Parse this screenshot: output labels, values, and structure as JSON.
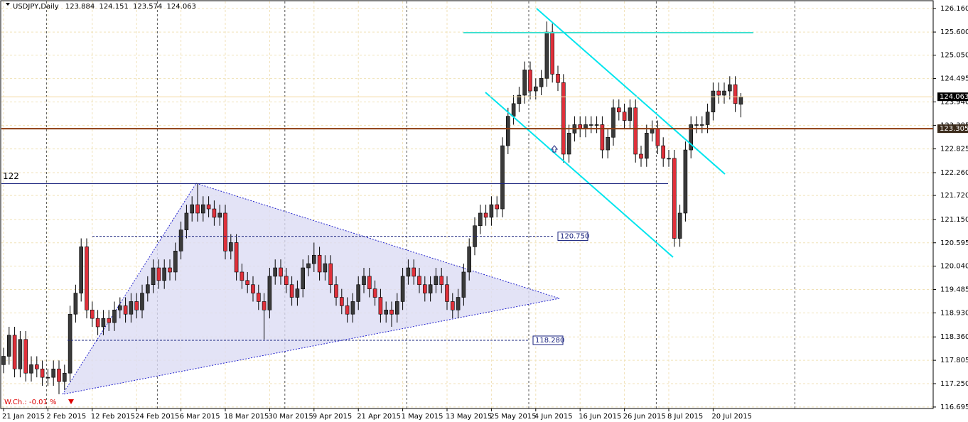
{
  "chart_data": {
    "type": "candlestick",
    "symbol": "USDJPY,Daily",
    "annotation": "W.Ch.: -0.01 %",
    "categories": [
      "21 Jan 2015",
      null,
      null,
      null,
      null,
      null,
      null,
      null,
      "2 Feb 2015",
      null,
      null,
      null,
      null,
      null,
      null,
      null,
      "12 Feb 2015",
      null,
      null,
      null,
      null,
      null,
      null,
      null,
      "24 Feb 2015",
      null,
      null,
      null,
      null,
      null,
      null,
      null,
      "6 Mar 2015",
      null,
      null,
      null,
      null,
      null,
      null,
      null,
      "18 Mar 2015",
      null,
      null,
      null,
      null,
      null,
      null,
      null,
      "30 Mar 2015",
      null,
      null,
      null,
      null,
      null,
      null,
      null,
      "9 Apr 2015",
      null,
      null,
      null,
      null,
      null,
      null,
      null,
      "21 Apr 2015",
      null,
      null,
      null,
      null,
      null,
      null,
      null,
      "1 May 2015",
      null,
      null,
      null,
      null,
      null,
      null,
      null,
      "13 May 2015",
      null,
      null,
      null,
      null,
      null,
      null,
      null,
      "25 May 2015",
      null,
      null,
      null,
      null,
      null,
      null,
      null,
      "4 Jun 2015",
      null,
      null,
      null,
      null,
      null,
      null,
      null,
      "16 Jun 2015",
      null,
      null,
      null,
      null,
      null,
      null,
      null,
      "26 Jun 2015",
      null,
      null,
      null,
      null,
      null,
      null,
      null,
      "8 Jul 2015",
      null,
      null,
      null,
      null,
      null,
      null,
      null,
      "20 Jul 2015",
      null,
      null,
      null,
      null,
      null
    ],
    "open": [
      117.7,
      117.9,
      118.4,
      117.6,
      118.3,
      117.5,
      117.7,
      117.6,
      117.4,
      117.4,
      117.6,
      117.3,
      117.5,
      118.9,
      119.4,
      120.5,
      119.0,
      118.8,
      118.6,
      118.8,
      118.7,
      119.0,
      119.1,
      118.9,
      119.2,
      119.0,
      119.4,
      119.6,
      120.0,
      119.7,
      120.0,
      119.9,
      120.4,
      120.9,
      121.3,
      121.5,
      121.3,
      121.5,
      121.4,
      121.2,
      121.3,
      120.4,
      120.6,
      119.9,
      119.7,
      119.6,
      119.4,
      119.2,
      119.0,
      119.8,
      120.0,
      119.8,
      119.6,
      119.3,
      119.5,
      120.0,
      120.1,
      120.3,
      119.9,
      120.1,
      119.6,
      119.3,
      119.1,
      118.9,
      119.2,
      119.6,
      119.8,
      119.5,
      119.3,
      118.9,
      119.0,
      118.9,
      119.2,
      119.8,
      120.0,
      119.8,
      119.6,
      119.4,
      119.6,
      119.8,
      119.6,
      119.2,
      119.0,
      119.3,
      119.9,
      120.5,
      121.0,
      121.3,
      121.2,
      121.5,
      121.4,
      122.9,
      123.6,
      123.9,
      124.1,
      124.7,
      124.2,
      124.3,
      124.5,
      125.6,
      124.6,
      124.4,
      122.7,
      123.2,
      123.4,
      123.3,
      123.4,
      123.4,
      123.4,
      122.8,
      123.1,
      123.8,
      123.7,
      123.5,
      123.8,
      122.7,
      122.6,
      123.2,
      123.3,
      122.9,
      122.6,
      122.6,
      120.7,
      121.3,
      122.8,
      123.4,
      123.4,
      123.4,
      123.7,
      124.2,
      124.1,
      124.2,
      124.35,
      123.884
    ],
    "high": [
      118.1,
      118.6,
      118.6,
      118.5,
      118.5,
      117.9,
      117.9,
      117.8,
      117.6,
      117.8,
      117.8,
      117.7,
      119.1,
      119.6,
      120.7,
      120.7,
      119.2,
      119.0,
      119.0,
      119.0,
      119.2,
      119.3,
      119.3,
      119.4,
      119.4,
      119.6,
      119.8,
      120.2,
      120.2,
      120.2,
      120.2,
      120.6,
      121.1,
      121.5,
      121.7,
      122.0,
      121.7,
      121.7,
      121.6,
      121.5,
      121.5,
      120.8,
      120.8,
      120.1,
      119.9,
      119.8,
      119.6,
      119.4,
      120.0,
      120.2,
      120.2,
      120.0,
      119.8,
      119.7,
      120.2,
      120.3,
      120.6,
      120.5,
      120.3,
      120.3,
      119.8,
      119.5,
      119.3,
      119.4,
      119.8,
      120.0,
      120.0,
      119.7,
      119.5,
      119.2,
      119.2,
      119.4,
      120.0,
      120.2,
      120.2,
      120.0,
      119.8,
      119.8,
      120.0,
      120.0,
      119.8,
      119.4,
      119.5,
      120.1,
      120.7,
      121.2,
      121.5,
      121.5,
      121.7,
      121.7,
      123.1,
      123.8,
      124.1,
      124.3,
      124.9,
      124.9,
      124.5,
      124.7,
      125.85,
      125.8,
      124.8,
      124.6,
      123.4,
      123.6,
      123.6,
      123.6,
      123.6,
      123.6,
      123.6,
      123.3,
      124.0,
      124.0,
      123.9,
      124.0,
      124.0,
      122.9,
      123.4,
      123.5,
      123.5,
      123.1,
      122.8,
      122.8,
      121.5,
      123.0,
      123.6,
      123.6,
      123.6,
      123.9,
      124.4,
      124.4,
      124.4,
      124.55,
      124.55,
      124.151
    ],
    "low": [
      117.5,
      117.7,
      117.4,
      117.4,
      117.3,
      117.3,
      117.4,
      117.2,
      117.2,
      117.2,
      117.0,
      117.1,
      117.3,
      118.7,
      119.2,
      118.8,
      118.6,
      118.4,
      118.4,
      118.5,
      118.5,
      118.8,
      118.7,
      118.7,
      118.8,
      118.8,
      119.2,
      119.4,
      119.5,
      119.5,
      119.7,
      119.7,
      120.2,
      120.7,
      121.1,
      121.1,
      121.1,
      121.2,
      121.0,
      121.0,
      120.2,
      120.2,
      119.7,
      119.5,
      119.4,
      119.2,
      119.0,
      118.3,
      118.8,
      119.6,
      119.6,
      119.4,
      119.1,
      119.1,
      119.3,
      119.8,
      119.9,
      119.7,
      119.7,
      119.4,
      119.1,
      118.9,
      118.7,
      118.7,
      119.0,
      119.4,
      119.3,
      119.1,
      118.7,
      118.7,
      118.6,
      118.7,
      119.0,
      119.6,
      119.6,
      119.4,
      119.2,
      119.2,
      119.4,
      119.4,
      119.0,
      118.8,
      118.8,
      119.1,
      119.7,
      120.3,
      120.8,
      121.0,
      121.0,
      121.2,
      121.2,
      122.7,
      123.4,
      123.7,
      123.9,
      124.0,
      124.0,
      124.1,
      124.3,
      124.4,
      124.2,
      122.5,
      122.5,
      123.0,
      123.1,
      123.1,
      123.2,
      123.2,
      122.6,
      122.6,
      122.9,
      123.5,
      123.3,
      123.3,
      122.5,
      122.4,
      122.4,
      123.0,
      122.7,
      122.4,
      122.4,
      120.5,
      120.5,
      121.1,
      122.6,
      123.2,
      123.2,
      123.2,
      123.5,
      123.9,
      123.9,
      124.0,
      123.7,
      123.574
    ],
    "close": [
      117.9,
      118.4,
      117.6,
      118.3,
      117.5,
      117.7,
      117.6,
      117.4,
      117.4,
      117.6,
      117.3,
      117.5,
      118.9,
      119.4,
      120.5,
      119.0,
      118.8,
      118.6,
      118.8,
      118.7,
      119.0,
      119.1,
      118.9,
      119.2,
      119.0,
      119.4,
      119.6,
      120.0,
      119.7,
      120.0,
      119.9,
      120.4,
      120.9,
      121.3,
      121.5,
      121.3,
      121.5,
      121.4,
      121.2,
      121.3,
      120.4,
      120.6,
      119.9,
      119.7,
      119.6,
      119.4,
      119.2,
      119.0,
      119.8,
      120.0,
      119.8,
      119.6,
      119.3,
      119.5,
      120.0,
      120.1,
      120.3,
      119.9,
      120.1,
      119.6,
      119.3,
      119.1,
      118.9,
      119.2,
      119.6,
      119.8,
      119.5,
      119.3,
      118.9,
      119.0,
      118.9,
      119.2,
      119.8,
      120.0,
      119.8,
      119.6,
      119.4,
      119.6,
      119.8,
      119.6,
      119.2,
      119.0,
      119.3,
      119.9,
      120.5,
      121.0,
      121.3,
      121.2,
      121.5,
      121.4,
      122.9,
      123.6,
      123.9,
      124.1,
      124.7,
      124.2,
      124.3,
      124.5,
      125.6,
      124.6,
      124.4,
      122.7,
      123.2,
      123.4,
      123.3,
      123.4,
      123.4,
      123.4,
      122.8,
      123.1,
      123.8,
      123.7,
      123.5,
      123.8,
      122.7,
      122.6,
      123.2,
      123.3,
      122.9,
      122.6,
      122.6,
      120.7,
      121.3,
      122.8,
      123.4,
      123.4,
      123.4,
      123.7,
      124.2,
      124.1,
      124.2,
      124.35,
      123.9,
      124.063
    ],
    "up_color": "#3a3a3a",
    "down_color": "#e0303a",
    "ylim": [
      116.66,
      126.31
    ],
    "yticks": [
      {
        "value": 126.16,
        "label": "126.160"
      },
      {
        "value": 125.6,
        "label": "125.600"
      },
      {
        "value": 125.05,
        "label": "125.050"
      },
      124.495,
      {
        "value": 123.94,
        "label": "123.940"
      },
      123.385,
      122.825,
      {
        "value": 122.26,
        "label": "122.260"
      },
      {
        "value": 121.72,
        "label": "121.720"
      },
      {
        "value": 121.15,
        "label": "121.150"
      },
      120.595,
      {
        "value": 120.04,
        "label": "120.040"
      },
      119.485,
      {
        "value": 118.93,
        "label": "118.930"
      },
      {
        "value": 118.36,
        "label": "118.360"
      },
      117.805,
      {
        "value": 117.25,
        "label": "117.250"
      },
      116.695
    ],
    "grid": true,
    "levels": [
      {
        "value": 123.305,
        "color": "#8b3a0f"
      },
      {
        "value": 122,
        "color": "#1a237e"
      },
      {
        "value": {
          "value": 120.75,
          "label": "120.750"
        },
        "color": "#1a237e"
      },
      {
        "value": {
          "value": 118.28,
          "label": "118.280"
        },
        "color": "#1a237e"
      }
    ]
  }
}
